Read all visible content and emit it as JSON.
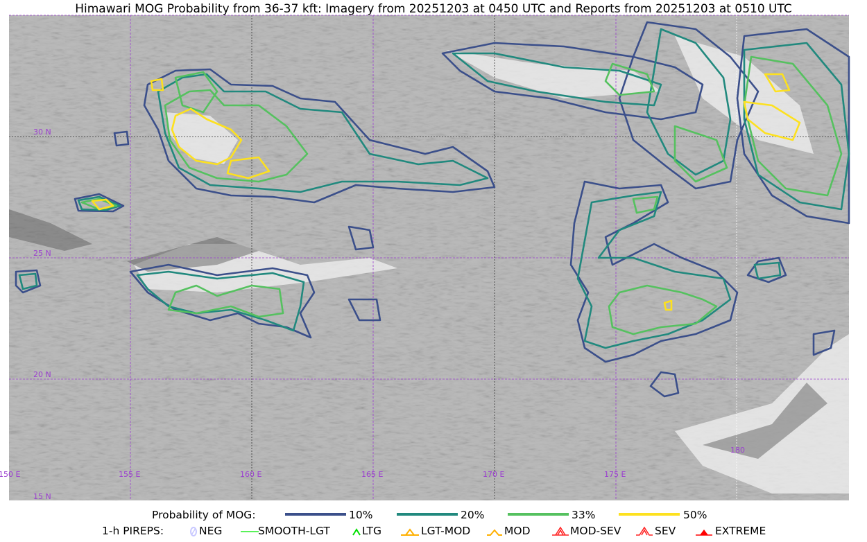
{
  "title": "Himawari MOG Probability from 36-37 kft: Imagery from 20251203 at 0450 UTC and Reports from 20251203 at 0510 UTC",
  "map": {
    "longitude_labels": [
      "150 E",
      "155 E",
      "160 E",
      "165 E",
      "170 E",
      "175 E",
      "180"
    ],
    "latitude_labels": [
      "30 N",
      "25 N",
      "20 N",
      "15 N"
    ],
    "gridline_color": "#9b3fd0"
  },
  "legend": {
    "probability_label": "Probability of MOG:",
    "probability_levels": [
      {
        "label": "10%",
        "color": "#3b4f8a"
      },
      {
        "label": "20%",
        "color": "#21897e"
      },
      {
        "label": "33%",
        "color": "#55c15f"
      },
      {
        "label": "50%",
        "color": "#fde11f"
      }
    ],
    "pireps_label": "1-h PIREPS:",
    "pireps": [
      {
        "label": "NEG",
        "icon": "neg-icon",
        "color": "#c8c8ff"
      },
      {
        "label": "SMOOTH-LGT",
        "icon": "line-icon",
        "color": "#22ee22"
      },
      {
        "label": "LTG",
        "icon": "caret-icon",
        "color": "#00e000"
      },
      {
        "label": "LGT-MOD",
        "icon": "triangle-caret-icon",
        "color": "#ffb000"
      },
      {
        "label": "MOD",
        "icon": "caret-icon",
        "color": "#ffb000"
      },
      {
        "label": "MOD-SEV",
        "icon": "double-caret-triangle-icon",
        "color": "#ff2020"
      },
      {
        "label": "SEV",
        "icon": "double-caret-icon",
        "color": "#ff2020"
      },
      {
        "label": "EXTREME",
        "icon": "filled-triangle-icon",
        "color": "#ff0000"
      }
    ]
  }
}
